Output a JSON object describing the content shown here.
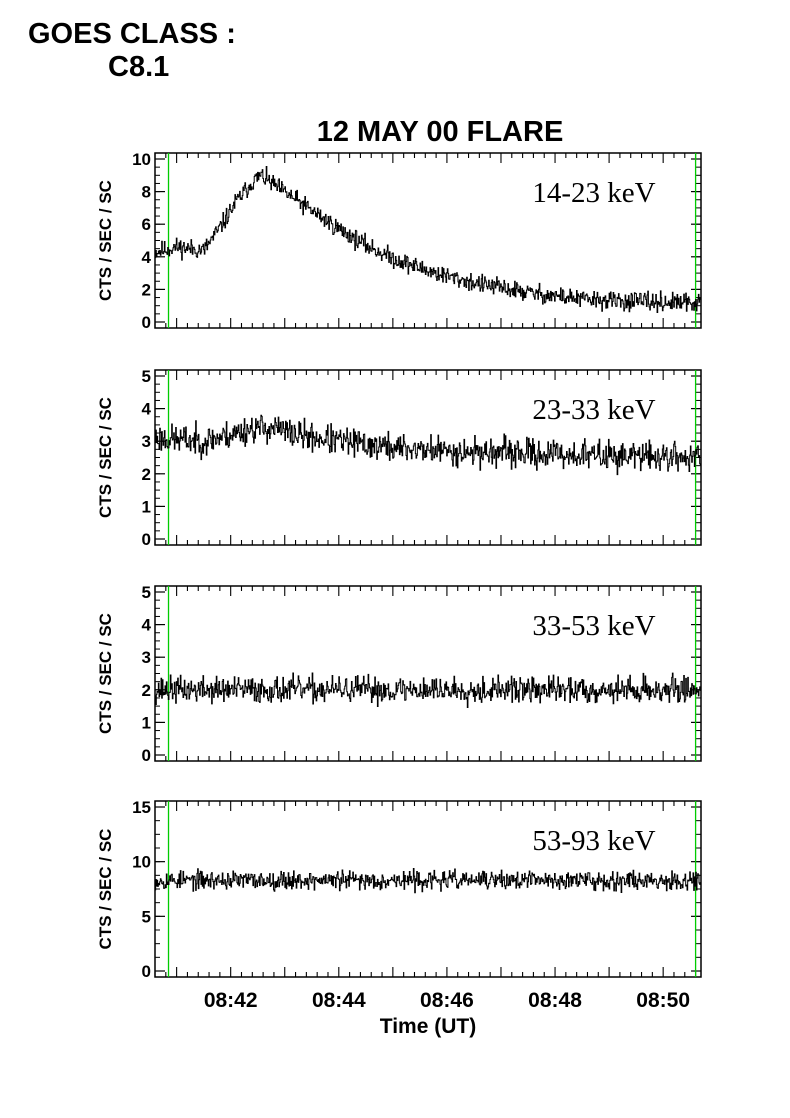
{
  "header": {
    "goes_class_label": "GOES CLASS :",
    "goes_class_value": "C8.1"
  },
  "chart_data": {
    "type": "line",
    "title": "12 MAY 00 FLARE",
    "xlabel": "Time (UT)",
    "x_ticks": [
      "08:42",
      "08:44",
      "08:46",
      "08:48",
      "08:50"
    ],
    "x_tick_minutes": [
      42,
      44,
      46,
      48,
      50
    ],
    "xlim_minutes_after_0840": [
      40.6,
      50.7
    ],
    "marker_lines_minutes": [
      40.85,
      50.6
    ],
    "colors": {
      "trace": "#000000",
      "marker": "#00cc00",
      "axes": "#000000"
    },
    "panels": [
      {
        "band": "14-23 keV",
        "ylabel": "CTS / SEC / SC",
        "ylim": [
          0,
          10
        ],
        "yticks": [
          0,
          2,
          4,
          6,
          8,
          10
        ],
        "profile_x": [
          40.6,
          41.0,
          41.5,
          41.8,
          42.1,
          42.4,
          42.55,
          42.8,
          43.2,
          43.6,
          44.0,
          44.5,
          45.0,
          45.5,
          46.0,
          46.5,
          47.0,
          47.5,
          48.0,
          48.5,
          49.0,
          49.5,
          50.0,
          50.7
        ],
        "profile_y": [
          4.3,
          4.6,
          4.4,
          5.8,
          7.4,
          8.6,
          9.0,
          8.4,
          7.5,
          6.6,
          5.7,
          4.7,
          3.9,
          3.3,
          2.8,
          2.4,
          2.1,
          1.8,
          1.6,
          1.4,
          1.3,
          1.25,
          1.2,
          1.15
        ],
        "noise": 0.28,
        "seed": 11
      },
      {
        "band": "23-33 keV",
        "ylabel": "CTS / SEC / SC",
        "ylim": [
          0,
          5
        ],
        "yticks": [
          0,
          1,
          2,
          3,
          4,
          5
        ],
        "profile_x": [
          40.6,
          41.5,
          42.0,
          42.4,
          42.8,
          43.2,
          44.0,
          45.0,
          46.0,
          48.0,
          50.7
        ],
        "profile_y": [
          3.1,
          3.0,
          3.2,
          3.4,
          3.4,
          3.2,
          3.0,
          2.8,
          2.7,
          2.6,
          2.5
        ],
        "noise": 0.22,
        "seed": 23
      },
      {
        "band": "33-53 keV",
        "ylabel": "CTS / SEC / SC",
        "ylim": [
          0,
          5
        ],
        "yticks": [
          0,
          1,
          2,
          3,
          4,
          5
        ],
        "profile_x": [
          40.6,
          50.7
        ],
        "profile_y": [
          2.0,
          2.0
        ],
        "noise": 0.2,
        "seed": 37
      },
      {
        "band": "53-93 keV",
        "ylabel": "CTS / SEC / SC",
        "ylim": [
          0,
          15
        ],
        "yticks": [
          0,
          5,
          10,
          15
        ],
        "profile_x": [
          40.6,
          50.7
        ],
        "profile_y": [
          8.3,
          8.3
        ],
        "noise": 0.42,
        "seed": 53
      }
    ]
  }
}
